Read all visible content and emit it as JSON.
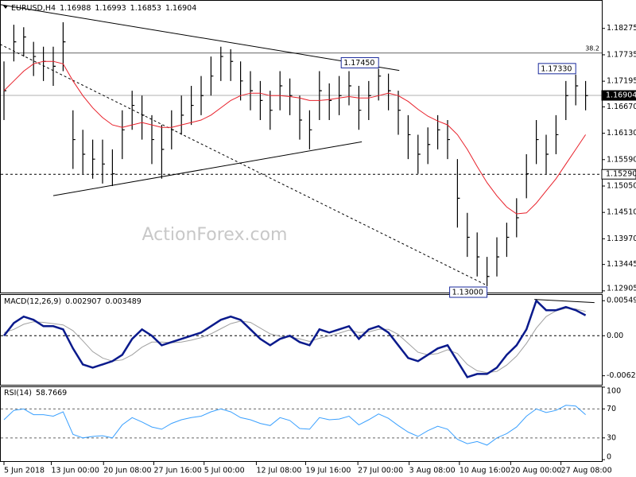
{
  "chart_data": {
    "type": "ohlc",
    "symbol": "EURUSD,H4",
    "quote": [
      1.16988,
      1.16993,
      1.16853,
      1.16904
    ],
    "watermark": "ActionForex.com",
    "xticks": [
      {
        "value": 0,
        "label": "5 Jun 2018"
      },
      {
        "value": 4.8,
        "label": "13 Jun 00:00"
      },
      {
        "value": 10.1,
        "label": "20 Jun 08:00"
      },
      {
        "value": 15.2,
        "label": "27 Jun 16:00"
      },
      {
        "value": 20.3,
        "label": "5 Jul 00:00"
      },
      {
        "value": 25.6,
        "label": "12 Jul 08:00"
      },
      {
        "value": 30.6,
        "label": "19 Jul 16:00"
      },
      {
        "value": 35.9,
        "label": "27 Jul 00:00"
      },
      {
        "value": 41.1,
        "label": "3 Aug 08:00"
      },
      {
        "value": 46.2,
        "label": "10 Aug 16:00"
      },
      {
        "value": 51.4,
        "label": "20 Aug 00:00"
      },
      {
        "value": 56.5,
        "label": "27 Aug 08:00"
      }
    ],
    "price": {
      "ylim": [
        1.1287,
        1.1884
      ],
      "color": "#000000",
      "yticks": [
        1.18275,
        1.17735,
        1.17195,
        {
          "value": 1.1667,
          "label": "1.16670"
        },
        {
          "value": 1.1613,
          "label": "1.16130"
        },
        {
          "value": 1.1559,
          "label": "1.15590"
        },
        {
          "value": 1.1505,
          "label": "1.15050"
        },
        {
          "value": 1.1451,
          "label": "1.14510"
        },
        {
          "value": 1.1397,
          "label": "1.13970"
        },
        1.13445,
        1.12905
      ],
      "high": [
        1.176,
        1.1835,
        1.183,
        1.18,
        1.179,
        1.179,
        1.184,
        1.166,
        1.162,
        1.16,
        1.16,
        1.158,
        1.166,
        1.17,
        1.169,
        1.165,
        1.163,
        1.166,
        1.169,
        1.171,
        1.173,
        1.177,
        1.179,
        1.1785,
        1.176,
        1.174,
        1.172,
        1.17,
        1.174,
        1.1725,
        1.169,
        1.166,
        1.174,
        1.1715,
        1.173,
        1.174,
        1.171,
        1.172,
        1.1745,
        1.1735,
        1.17,
        1.165,
        1.161,
        1.1625,
        1.165,
        1.164,
        1.156,
        1.145,
        1.141,
        1.136,
        1.14,
        1.143,
        1.148,
        1.157,
        1.164,
        1.161,
        1.165,
        1.172,
        1.1733,
        1.172
      ],
      "low": [
        1.164,
        1.176,
        1.177,
        1.173,
        1.172,
        1.171,
        1.174,
        1.154,
        1.153,
        1.152,
        1.151,
        1.1505,
        1.156,
        1.162,
        1.16,
        1.155,
        1.152,
        1.158,
        1.161,
        1.163,
        1.165,
        1.169,
        1.172,
        1.172,
        1.168,
        1.166,
        1.164,
        1.162,
        1.166,
        1.165,
        1.16,
        1.158,
        1.164,
        1.164,
        1.165,
        1.167,
        1.162,
        1.164,
        1.168,
        1.166,
        1.161,
        1.156,
        1.153,
        1.155,
        1.158,
        1.156,
        1.142,
        1.136,
        1.132,
        1.13,
        1.132,
        1.136,
        1.14,
        1.148,
        1.155,
        1.153,
        1.157,
        1.164,
        1.167,
        1.166
      ],
      "close": [
        1.17,
        1.18,
        1.181,
        1.177,
        1.176,
        1.175,
        1.18,
        1.16,
        1.157,
        1.156,
        1.155,
        1.153,
        1.162,
        1.167,
        1.165,
        1.16,
        1.158,
        1.162,
        1.165,
        1.167,
        1.169,
        1.173,
        1.177,
        1.176,
        1.172,
        1.17,
        1.168,
        1.166,
        1.171,
        1.169,
        1.164,
        1.162,
        1.17,
        1.168,
        1.169,
        1.171,
        1.166,
        1.169,
        1.173,
        1.17,
        1.166,
        1.161,
        1.157,
        1.159,
        1.162,
        1.16,
        1.148,
        1.14,
        1.136,
        1.132,
        1.136,
        1.14,
        1.144,
        1.153,
        1.16,
        1.157,
        1.161,
        1.169,
        1.171,
        1.169
      ],
      "ma": {
        "color": "#e8202a",
        "values": [
          1.17,
          1.172,
          1.174,
          1.1755,
          1.176,
          1.176,
          1.1755,
          1.172,
          1.169,
          1.1665,
          1.1645,
          1.163,
          1.1625,
          1.163,
          1.1635,
          1.163,
          1.1625,
          1.1625,
          1.163,
          1.1635,
          1.164,
          1.165,
          1.1665,
          1.168,
          1.169,
          1.1695,
          1.1695,
          1.169,
          1.169,
          1.1688,
          1.1685,
          1.168,
          1.168,
          1.1682,
          1.1685,
          1.1688,
          1.1685,
          1.1685,
          1.169,
          1.1695,
          1.169,
          1.1678,
          1.1662,
          1.1648,
          1.1638,
          1.163,
          1.161,
          1.158,
          1.1545,
          1.1512,
          1.1485,
          1.1462,
          1.1448,
          1.145,
          1.147,
          1.1495,
          1.152,
          1.155,
          1.158,
          1.161
        ]
      },
      "fib": {
        "ratio": 38.2,
        "value": 1.1777
      },
      "levels": [
        {
          "value": 1.16904,
          "label": "1.16904",
          "style": "solid"
        },
        {
          "value": 1.1529,
          "label": "1.15290",
          "style": "dashed"
        }
      ],
      "callouts": [
        {
          "x": 38,
          "value": 1.1745,
          "label": "1.17450"
        },
        {
          "x": 58,
          "value": 1.1733,
          "label": "1.17330"
        },
        {
          "x": 49,
          "value": 1.13,
          "label": "1.13000"
        }
      ],
      "trendlines": [
        {
          "x": [
            -0.4,
            40.1
          ],
          "y": [
            1.18762,
            1.17415
          ],
          "style": "solid"
        },
        {
          "x": [
            5,
            36.3
          ],
          "y": [
            1.14852,
            1.15955
          ],
          "style": "solid"
        },
        {
          "x": [
            -0.4,
            48.8
          ],
          "y": [
            1.17951,
            1.13035
          ],
          "style": "dashed"
        }
      ]
    },
    "macd": {
      "title": "MACD(12,26,9)",
      "readout": [
        0.002907,
        0.003489
      ],
      "ylim": [
        -0.0077,
        0.0064
      ],
      "yticks": [
        0.005498,
        {
          "value": 0,
          "label": "0.00"
        },
        -0.006283
      ],
      "main": {
        "color": "#0a1a8c",
        "values": [
          0,
          0.002,
          0.003,
          0.0025,
          0.0015,
          0.0015,
          0.001,
          -0.002,
          -0.0045,
          -0.005,
          -0.0045,
          -0.004,
          -0.003,
          -0.0005,
          0.001,
          0,
          -0.0015,
          -0.001,
          -0.0005,
          0,
          0.0005,
          0.0015,
          0.0025,
          0.003,
          0.0025,
          0.001,
          -0.0005,
          -0.0015,
          -0.0005,
          0,
          -0.001,
          -0.0015,
          0.001,
          0.0005,
          0.001,
          0.0015,
          -0.0005,
          0.001,
          0.0015,
          0.0005,
          -0.0015,
          -0.0035,
          -0.004,
          -0.003,
          -0.002,
          -0.0015,
          -0.004,
          -0.0065,
          -0.006,
          -0.006,
          -0.005,
          -0.003,
          -0.0015,
          0.001,
          0.0055,
          0.004,
          0.004,
          0.0045,
          0.004,
          0.0032
        ]
      },
      "signal": {
        "color": "#a0a0a0",
        "values": [
          0.0005,
          0.001,
          0.0018,
          0.0022,
          0.0021,
          0.0019,
          0.0017,
          0.0008,
          -0.0008,
          -0.0025,
          -0.0035,
          -0.004,
          -0.0038,
          -0.003,
          -0.0018,
          -0.001,
          -0.001,
          -0.0011,
          -0.001,
          -0.0007,
          -0.0003,
          0.0003,
          0.0011,
          0.0019,
          0.0023,
          0.0021,
          0.0012,
          0.0003,
          -0.0001,
          -0.0002,
          -0.0005,
          -0.0009,
          -0.0004,
          0,
          0.0004,
          0.0009,
          0.0005,
          0.0006,
          0.001,
          0.001,
          0.0002,
          -0.0012,
          -0.0026,
          -0.003,
          -0.0028,
          -0.0022,
          -0.0028,
          -0.0045,
          -0.0055,
          -0.0058,
          -0.0056,
          -0.0046,
          -0.0032,
          -0.0012,
          0.0012,
          0.003,
          0.0039,
          0.0043,
          0.0042,
          0.0038
        ]
      },
      "trendline": {
        "x": [
          53.8,
          59.9
        ],
        "y": [
          0.0057,
          0.0052
        ]
      }
    },
    "rsi": {
      "title": "RSI(14)",
      "readout": 58.7669,
      "ylim": [
        -2,
        100
      ],
      "yticks": [
        0,
        30,
        70,
        100
      ],
      "levels": [
        30,
        70
      ],
      "color": "#3aa0ff",
      "values": [
        55,
        68,
        70,
        62,
        62,
        60,
        66,
        35,
        30,
        32,
        33,
        30,
        48,
        58,
        52,
        45,
        42,
        50,
        55,
        58,
        60,
        66,
        70,
        66,
        58,
        55,
        50,
        47,
        58,
        54,
        43,
        42,
        58,
        55,
        56,
        60,
        48,
        55,
        63,
        57,
        47,
        38,
        32,
        40,
        46,
        42,
        28,
        22,
        25,
        20,
        30,
        36,
        45,
        60,
        70,
        65,
        68,
        75,
        74,
        62
      ]
    }
  }
}
